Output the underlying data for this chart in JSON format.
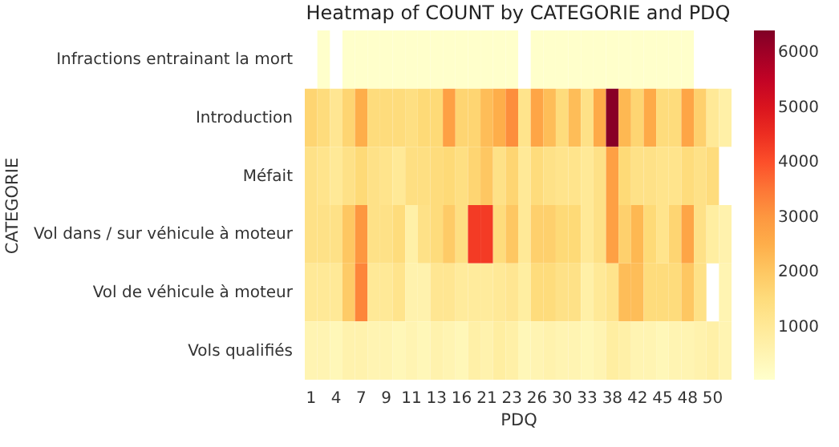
{
  "chart_data": {
    "type": "heatmap",
    "title": "Heatmap of COUNT by CATEGORIE and PDQ",
    "xlabel": "PDQ",
    "ylabel": "CATEGORIE",
    "categories": [
      "1",
      null,
      "4",
      null,
      "7",
      null,
      "9",
      null,
      "11",
      null,
      "13",
      null,
      "16",
      null,
      "21",
      null,
      "23",
      null,
      "26",
      null,
      "30",
      null,
      "33",
      null,
      "38",
      null,
      "42",
      null,
      "45",
      null,
      "48",
      null,
      "50",
      null
    ],
    "y_categories": [
      "Infractions entrainant la mort",
      "Introduction",
      "Méfait",
      "Vol dans / sur véhicule à moteur",
      "Vol de véhicule à moteur",
      "Vols qualifiés"
    ],
    "cells": [
      [
        null,
        50,
        null,
        50,
        50,
        50,
        50,
        50,
        50,
        50,
        50,
        50,
        50,
        50,
        50,
        50,
        50,
        null,
        50,
        50,
        50,
        50,
        50,
        50,
        50,
        50,
        50,
        50,
        50,
        50,
        50,
        null,
        null,
        null
      ],
      [
        1700,
        1500,
        1100,
        1700,
        2500,
        1500,
        1500,
        1500,
        1400,
        1600,
        1600,
        2800,
        1700,
        1700,
        2200,
        2500,
        3200,
        1200,
        2700,
        2200,
        1500,
        2200,
        1300,
        2600,
        6300,
        2300,
        1700,
        2600,
        1500,
        1500,
        2700,
        1800,
        1000,
        700
      ],
      [
        1300,
        1200,
        1000,
        1300,
        1600,
        1300,
        1200,
        1000,
        1400,
        1400,
        1500,
        1600,
        1400,
        1700,
        2000,
        1300,
        1700,
        1000,
        1500,
        1300,
        1200,
        1200,
        1000,
        1300,
        2800,
        1600,
        1300,
        1300,
        1200,
        1200,
        1500,
        1300,
        1500,
        null
      ],
      [
        1300,
        1300,
        1300,
        2000,
        3000,
        1300,
        1300,
        1500,
        700,
        1300,
        1500,
        1900,
        1400,
        4300,
        4300,
        1500,
        2000,
        1000,
        1800,
        1800,
        1600,
        1600,
        1000,
        1300,
        2800,
        1800,
        2300,
        1600,
        1200,
        1700,
        2700,
        1300,
        800,
        600
      ],
      [
        1000,
        1000,
        1000,
        1900,
        3300,
        1000,
        1000,
        1200,
        600,
        600,
        1100,
        1100,
        900,
        900,
        900,
        1000,
        1100,
        800,
        1500,
        1500,
        1300,
        1300,
        700,
        1000,
        1200,
        2200,
        2200,
        1500,
        1500,
        1500,
        2000,
        1300,
        null,
        500
      ],
      [
        500,
        500,
        400,
        600,
        600,
        500,
        500,
        400,
        500,
        400,
        600,
        500,
        400,
        700,
        600,
        800,
        700,
        400,
        500,
        600,
        500,
        500,
        400,
        500,
        800,
        700,
        500,
        500,
        400,
        500,
        500,
        600,
        700,
        500
      ]
    ],
    "clim": [
      30,
      6400
    ],
    "cticks": [
      1000,
      2000,
      3000,
      4000,
      5000,
      6000
    ]
  }
}
